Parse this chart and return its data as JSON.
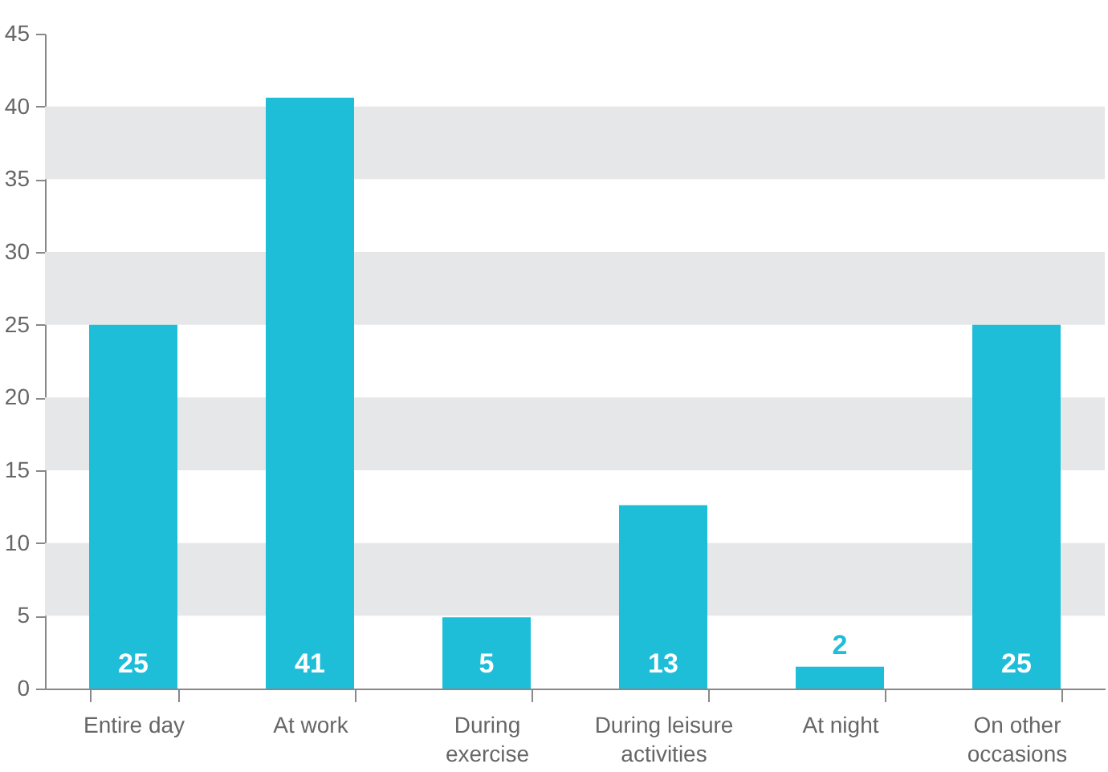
{
  "chart_data": {
    "type": "bar",
    "categories": [
      "Entire day",
      "At work",
      "During\nexercise",
      "During leisure\nactivities",
      "At night",
      "On other\noccasions"
    ],
    "values": [
      25,
      40.6,
      4.9,
      12.6,
      1.5,
      25
    ],
    "value_labels": [
      "25",
      "41",
      "5",
      "13",
      "2",
      "25"
    ],
    "color": "#1ebdd8",
    "ylim": [
      0,
      45
    ],
    "yticks": [
      0,
      5,
      10,
      15,
      20,
      25,
      30,
      35,
      40,
      45
    ],
    "grid": false,
    "bands": [
      {
        "axis": "y",
        "from": 5,
        "to": 10,
        "color": "#e6e7e8"
      },
      {
        "axis": "y",
        "from": 15,
        "to": 20,
        "color": "#e6e7e8"
      },
      {
        "axis": "y",
        "from": 25,
        "to": 30,
        "color": "#e6e7e8"
      },
      {
        "axis": "y",
        "from": 35,
        "to": 40,
        "color": "#e6e7e8"
      }
    ]
  }
}
